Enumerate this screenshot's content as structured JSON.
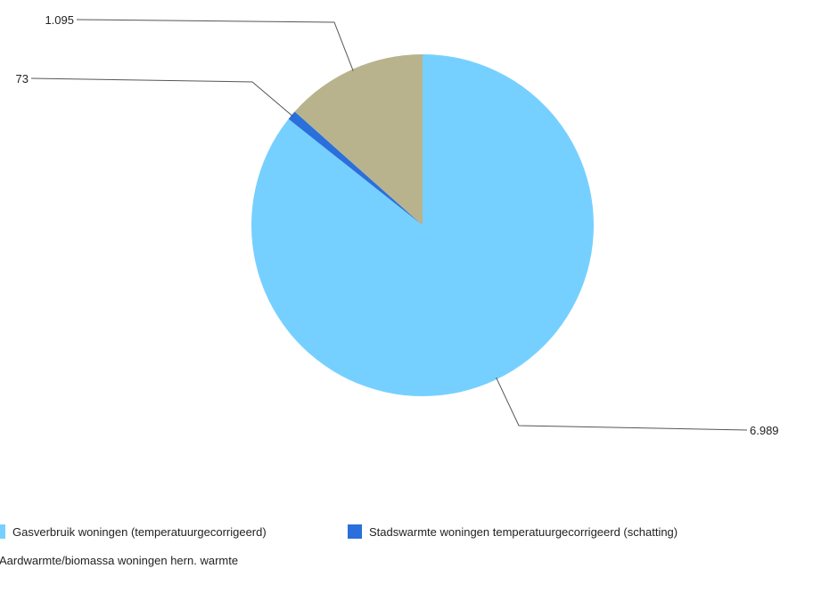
{
  "chart_data": {
    "type": "pie",
    "title": "",
    "slices": [
      {
        "label": "Gasverbruik woningen (temperatuurgecorrigeerd)",
        "value": 6989,
        "display": "6.989",
        "color": "#76d0ff"
      },
      {
        "label": "Stadswarmte woningen temperatuurgecorrigeerd (schatting)",
        "value": 73,
        "display": "73",
        "color": "#2a6fdb"
      },
      {
        "label": "Aardwarmte/biomassa woningen hern. warmte",
        "value": 1095,
        "display": "1.095",
        "color": "#b8b38c"
      }
    ],
    "legend_position": "bottom"
  }
}
